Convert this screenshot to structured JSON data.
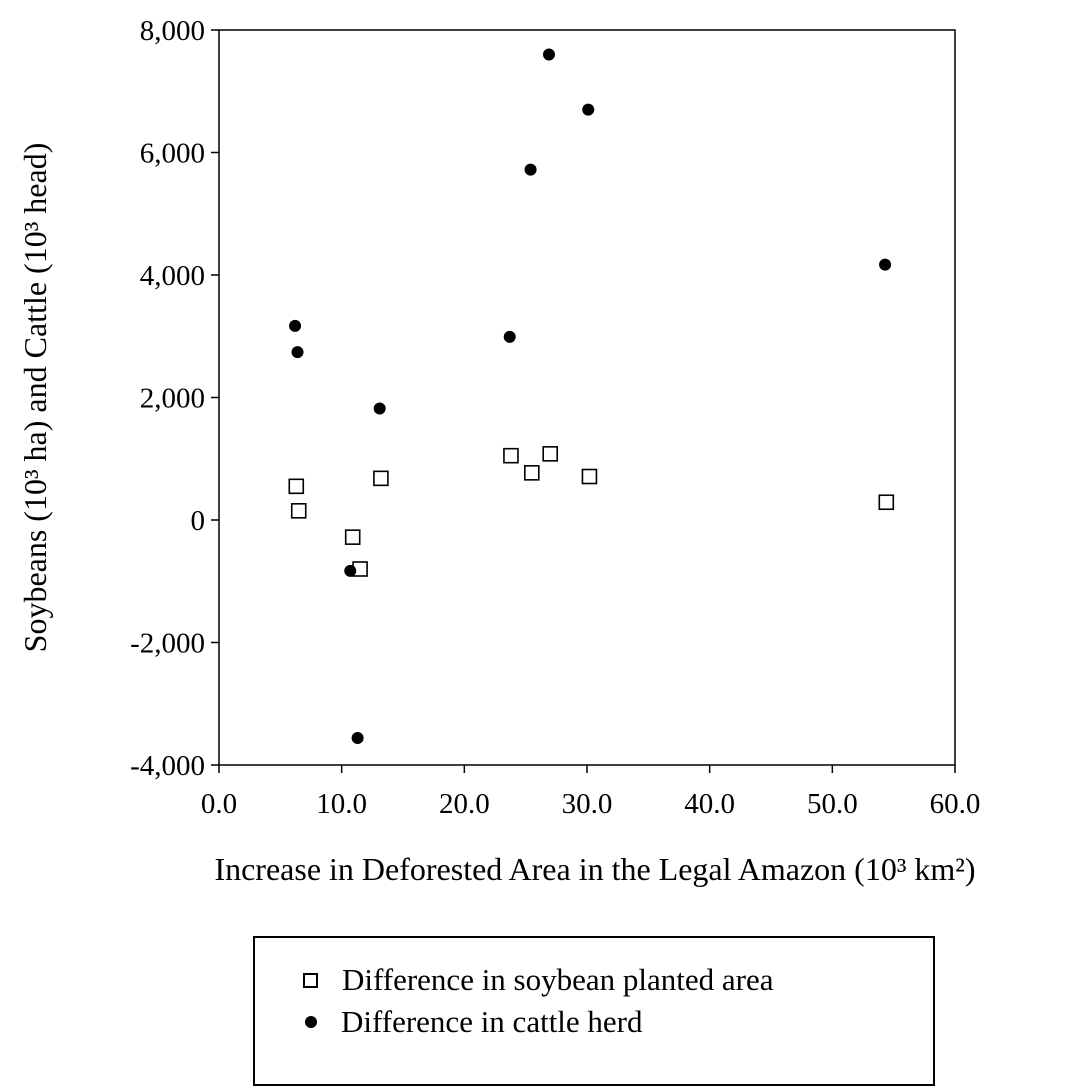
{
  "chart_data": {
    "type": "scatter",
    "title": "",
    "xlabel": "Increase in Deforested Area in the Legal Amazon (10³ km²)",
    "ylabel": "Soybeans (10³ ha) and Cattle (10³ head)",
    "xlim": [
      0,
      60
    ],
    "ylim": [
      -4000,
      8000
    ],
    "x_ticks": [
      "0.0",
      "10.0",
      "20.0",
      "30.0",
      "40.0",
      "50.0",
      "60.0"
    ],
    "y_ticks": [
      "-4,000",
      "-2,000",
      "0",
      "2,000",
      "4,000",
      "6,000",
      "8,000"
    ],
    "grid": false,
    "legend_position": "bottom",
    "series": [
      {
        "name": "Difference in soybean planted area",
        "marker": "open-square",
        "color": "#000000",
        "points": [
          {
            "x": 6.3,
            "y": 550
          },
          {
            "x": 6.5,
            "y": 150
          },
          {
            "x": 10.9,
            "y": -280
          },
          {
            "x": 11.5,
            "y": -800
          },
          {
            "x": 13.2,
            "y": 680
          },
          {
            "x": 23.8,
            "y": 1050
          },
          {
            "x": 25.5,
            "y": 770
          },
          {
            "x": 27.0,
            "y": 1080
          },
          {
            "x": 30.2,
            "y": 710
          },
          {
            "x": 54.4,
            "y": 290
          }
        ]
      },
      {
        "name": "Difference in cattle herd",
        "marker": "filled-circle",
        "color": "#000000",
        "points": [
          {
            "x": 6.2,
            "y": 3170
          },
          {
            "x": 6.4,
            "y": 2740
          },
          {
            "x": 10.7,
            "y": -830
          },
          {
            "x": 11.3,
            "y": -3560
          },
          {
            "x": 13.1,
            "y": 1820
          },
          {
            "x": 23.7,
            "y": 2990
          },
          {
            "x": 25.4,
            "y": 5720
          },
          {
            "x": 26.9,
            "y": 7600
          },
          {
            "x": 30.1,
            "y": 6700
          },
          {
            "x": 54.3,
            "y": 4170
          }
        ]
      }
    ]
  }
}
